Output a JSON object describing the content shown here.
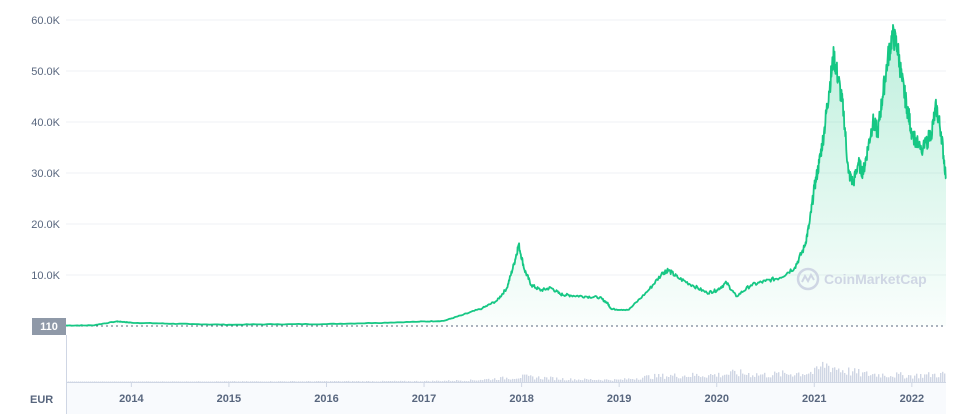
{
  "chart_data": {
    "type": "area",
    "currency": "EUR",
    "watermark": "CoinMarketCap",
    "price_badge": "110",
    "y_ticks": [
      "60.0K",
      "50.0K",
      "40.0K",
      "30.0K",
      "20.0K",
      "10.0K"
    ],
    "y_tick_values": [
      60000,
      50000,
      40000,
      30000,
      20000,
      10000
    ],
    "x_ticks": [
      "2014",
      "2015",
      "2016",
      "2017",
      "2018",
      "2019",
      "2020",
      "2021",
      "2022"
    ],
    "x_tick_values": [
      2014,
      2015,
      2016,
      2017,
      2018,
      2019,
      2020,
      2021,
      2022
    ],
    "ylim": [
      0,
      60000
    ],
    "xlim": [
      2013.33,
      2022.35
    ],
    "grid": true,
    "series": [
      {
        "x": [
          2013.33,
          2013.6,
          2013.85,
          2013.92,
          2014.0,
          2014.3,
          2014.6,
          2015.0,
          2015.5,
          2016.0,
          2016.5,
          2016.95,
          2017.2,
          2017.4,
          2017.6,
          2017.75,
          2017.85,
          2017.92,
          2017.97,
          2018.03,
          2018.1,
          2018.2,
          2018.3,
          2018.4,
          2018.5,
          2018.65,
          2018.8,
          2018.88,
          2018.92,
          2019.1,
          2019.3,
          2019.45,
          2019.5,
          2019.6,
          2019.75,
          2019.9,
          2020.0,
          2020.1,
          2020.2,
          2020.35,
          2020.5,
          2020.65,
          2020.8,
          2020.9,
          2020.95,
          2021.0,
          2021.05,
          2021.1,
          2021.15,
          2021.2,
          2021.25,
          2021.3,
          2021.35,
          2021.4,
          2021.45,
          2021.5,
          2021.55,
          2021.6,
          2021.65,
          2021.7,
          2021.75,
          2021.8,
          2021.85,
          2021.9,
          2021.95,
          2022.0,
          2022.1,
          2022.2,
          2022.25,
          2022.3,
          2022.35
        ],
        "y": [
          100,
          120,
          900,
          800,
          650,
          500,
          380,
          250,
          350,
          380,
          600,
          850,
          1000,
          2200,
          3500,
          5000,
          7500,
          12000,
          16000,
          11000,
          8000,
          7000,
          7500,
          6200,
          6000,
          5800,
          5600,
          4500,
          3300,
          3200,
          7000,
          10500,
          11000,
          9500,
          8000,
          6500,
          7000,
          8500,
          5800,
          8000,
          8800,
          9500,
          11500,
          15500,
          20000,
          27000,
          32000,
          38000,
          46000,
          53000,
          48000,
          42000,
          30000,
          28000,
          32000,
          30000,
          35000,
          40000,
          38000,
          45000,
          52000,
          57000,
          55000,
          48000,
          43000,
          38000,
          34000,
          38000,
          43000,
          38000,
          29000
        ]
      }
    ],
    "volume": {
      "x": [
        2013.33,
        2017.0,
        2017.5,
        2017.9,
        2018.0,
        2018.5,
        2019.0,
        2019.3,
        2019.5,
        2020.0,
        2020.2,
        2020.5,
        2021.0,
        2021.1,
        2021.3,
        2021.5,
        2021.8,
        2022.0,
        2022.35
      ],
      "y": [
        0.02,
        0.05,
        0.1,
        0.25,
        0.3,
        0.15,
        0.12,
        0.3,
        0.35,
        0.4,
        0.5,
        0.4,
        0.55,
        1.0,
        0.65,
        0.45,
        0.4,
        0.35,
        0.45
      ]
    }
  }
}
